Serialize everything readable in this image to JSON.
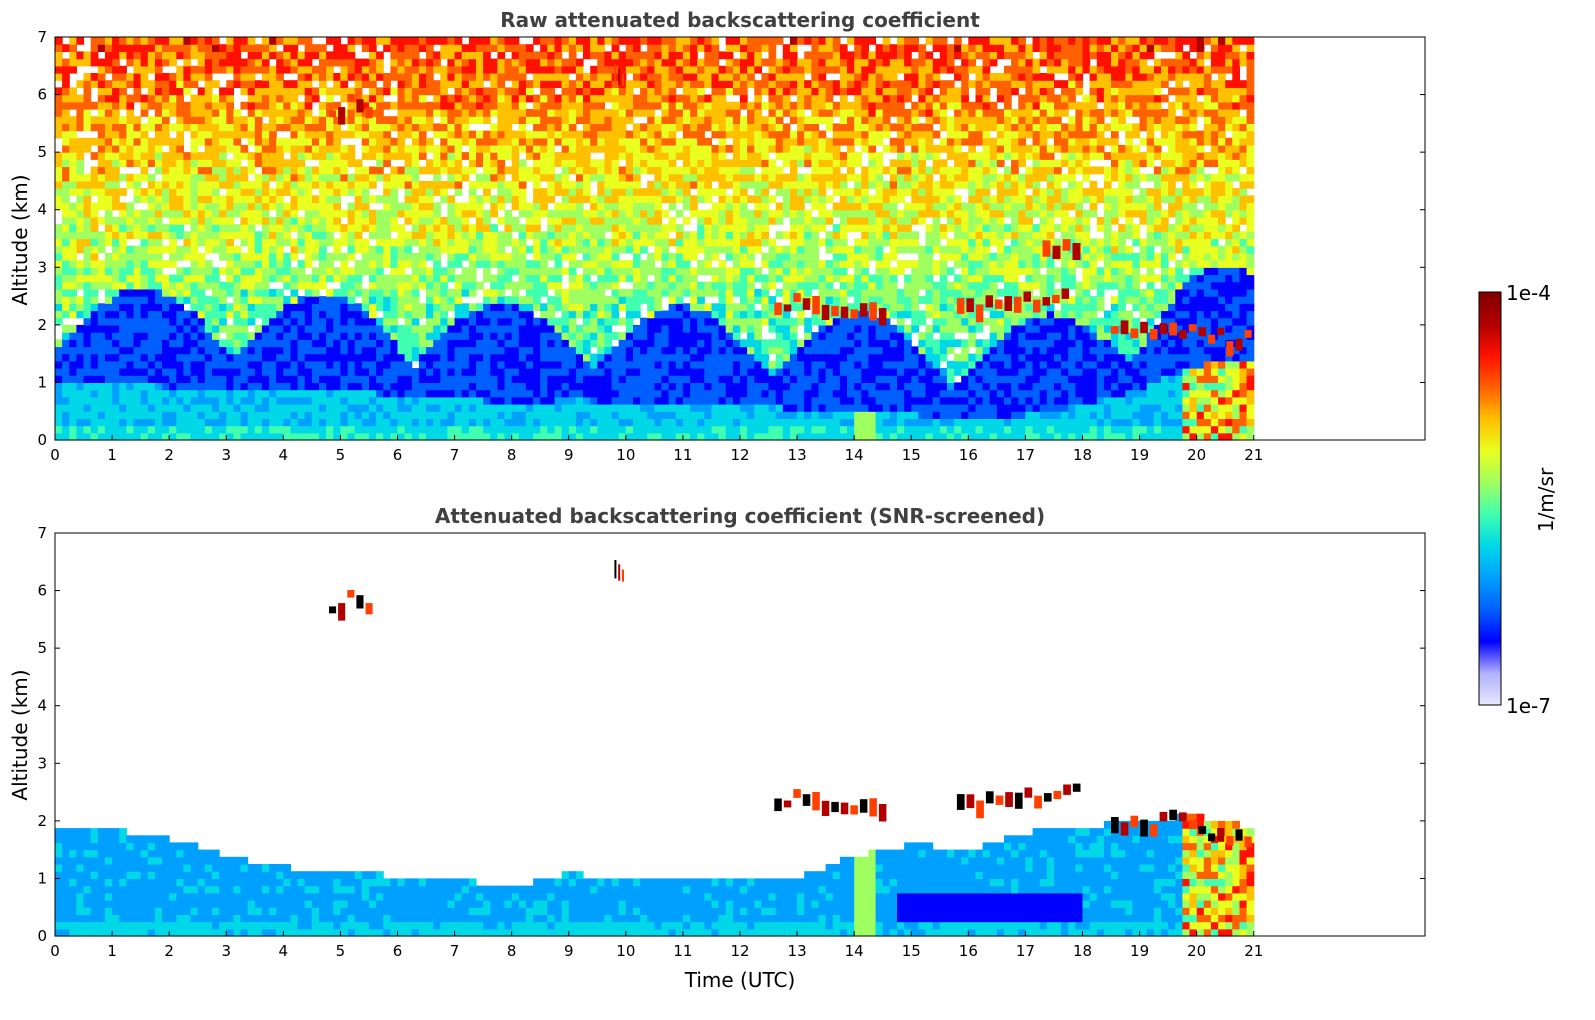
{
  "chart_data": [
    {
      "type": "heatmap",
      "title": "Raw attenuated backscattering coefficient",
      "xlabel": "",
      "ylabel": "Altitude (km)",
      "xlim": [
        0,
        24
      ],
      "ylim": [
        0,
        7
      ],
      "xticks": [
        0,
        1,
        2,
        3,
        4,
        5,
        6,
        7,
        8,
        9,
        10,
        11,
        12,
        13,
        14,
        15,
        16,
        17,
        18,
        19,
        20,
        21
      ],
      "yticks": [
        0,
        1,
        2,
        3,
        4,
        5,
        6,
        7
      ],
      "data_end_time": 21,
      "features": {
        "boundary_layer_top_km": [
          [
            0,
            1.0
          ],
          [
            3,
            0.9
          ],
          [
            6,
            0.8
          ],
          [
            8,
            0.65
          ],
          [
            9,
            0.7
          ],
          [
            12,
            0.6
          ],
          [
            14,
            0.5
          ],
          [
            15,
            0.45
          ],
          [
            16.5,
            0.35
          ],
          [
            18,
            0.6
          ],
          [
            19,
            0.9
          ],
          [
            20,
            1.3
          ],
          [
            21,
            1.4
          ]
        ],
        "cloud_layers": [
          {
            "t_start": 4.8,
            "t_end": 5.6,
            "alt_km": 5.82
          },
          {
            "t_start": 9.8,
            "t_end": 10.0,
            "alt_km": 6.3
          },
          {
            "t_start": 12.6,
            "t_end": 14.6,
            "alt_km": 2.3
          },
          {
            "t_start": 15.8,
            "t_end": 17.8,
            "alt_km": 2.4
          },
          {
            "t_start": 17.3,
            "t_end": 18.0,
            "alt_km": 3.4
          },
          {
            "t_start": 18.5,
            "t_end": 20.2,
            "alt_km": 2.0
          },
          {
            "t_start": 20.2,
            "t_end": 21.0,
            "alt_km": 1.8
          }
        ]
      }
    },
    {
      "type": "heatmap",
      "title": "Attenuated backscattering coefficient (SNR-screened)",
      "xlabel": "Time (UTC)",
      "ylabel": "Altitude (km)",
      "xlim": [
        0,
        24
      ],
      "ylim": [
        0,
        7
      ],
      "xticks": [
        0,
        1,
        2,
        3,
        4,
        5,
        6,
        7,
        8,
        9,
        10,
        11,
        12,
        13,
        14,
        15,
        16,
        17,
        18,
        19,
        20,
        21
      ],
      "yticks": [
        0,
        1,
        2,
        3,
        4,
        5,
        6,
        7
      ],
      "data_end_time": 21,
      "features": {
        "screened_signal_top_km": [
          [
            0,
            1.9
          ],
          [
            1,
            1.85
          ],
          [
            2,
            1.7
          ],
          [
            3,
            1.4
          ],
          [
            4,
            1.2
          ],
          [
            5,
            1.1
          ],
          [
            6,
            1.05
          ],
          [
            7,
            1.0
          ],
          [
            8,
            0.85
          ],
          [
            9,
            1.1
          ],
          [
            10,
            0.95
          ],
          [
            11,
            1.0
          ],
          [
            12,
            1.05
          ],
          [
            13,
            1.0
          ],
          [
            14,
            1.4
          ],
          [
            15,
            1.6
          ],
          [
            16,
            1.5
          ],
          [
            17,
            1.8
          ],
          [
            18,
            1.9
          ],
          [
            19,
            2.0
          ],
          [
            20,
            2.1
          ],
          [
            21,
            1.9
          ]
        ],
        "cloud_layers": [
          {
            "t_start": 4.8,
            "t_end": 5.6,
            "alt_km": 5.82
          },
          {
            "t_start": 9.8,
            "t_end": 10.0,
            "alt_km": 6.3
          },
          {
            "t_start": 12.6,
            "t_end": 14.6,
            "alt_km": 2.3
          },
          {
            "t_start": 15.8,
            "t_end": 18.0,
            "alt_km": 2.4
          },
          {
            "t_start": 18.5,
            "t_end": 20.2,
            "alt_km": 2.0
          },
          {
            "t_start": 20.2,
            "t_end": 21.0,
            "alt_km": 1.8
          }
        ]
      }
    }
  ],
  "colorbar": {
    "label": "1/m/sr",
    "max_label": "1e-4",
    "min_label": "1e-7",
    "colors": [
      "#e8e8ff",
      "#b0b0ff",
      "#0000ff",
      "#0060ff",
      "#00a0ff",
      "#00d8e8",
      "#40ffb0",
      "#a0ff60",
      "#e8ff20",
      "#ffc000",
      "#ff6000",
      "#ff1000",
      "#b00000",
      "#800000"
    ]
  }
}
